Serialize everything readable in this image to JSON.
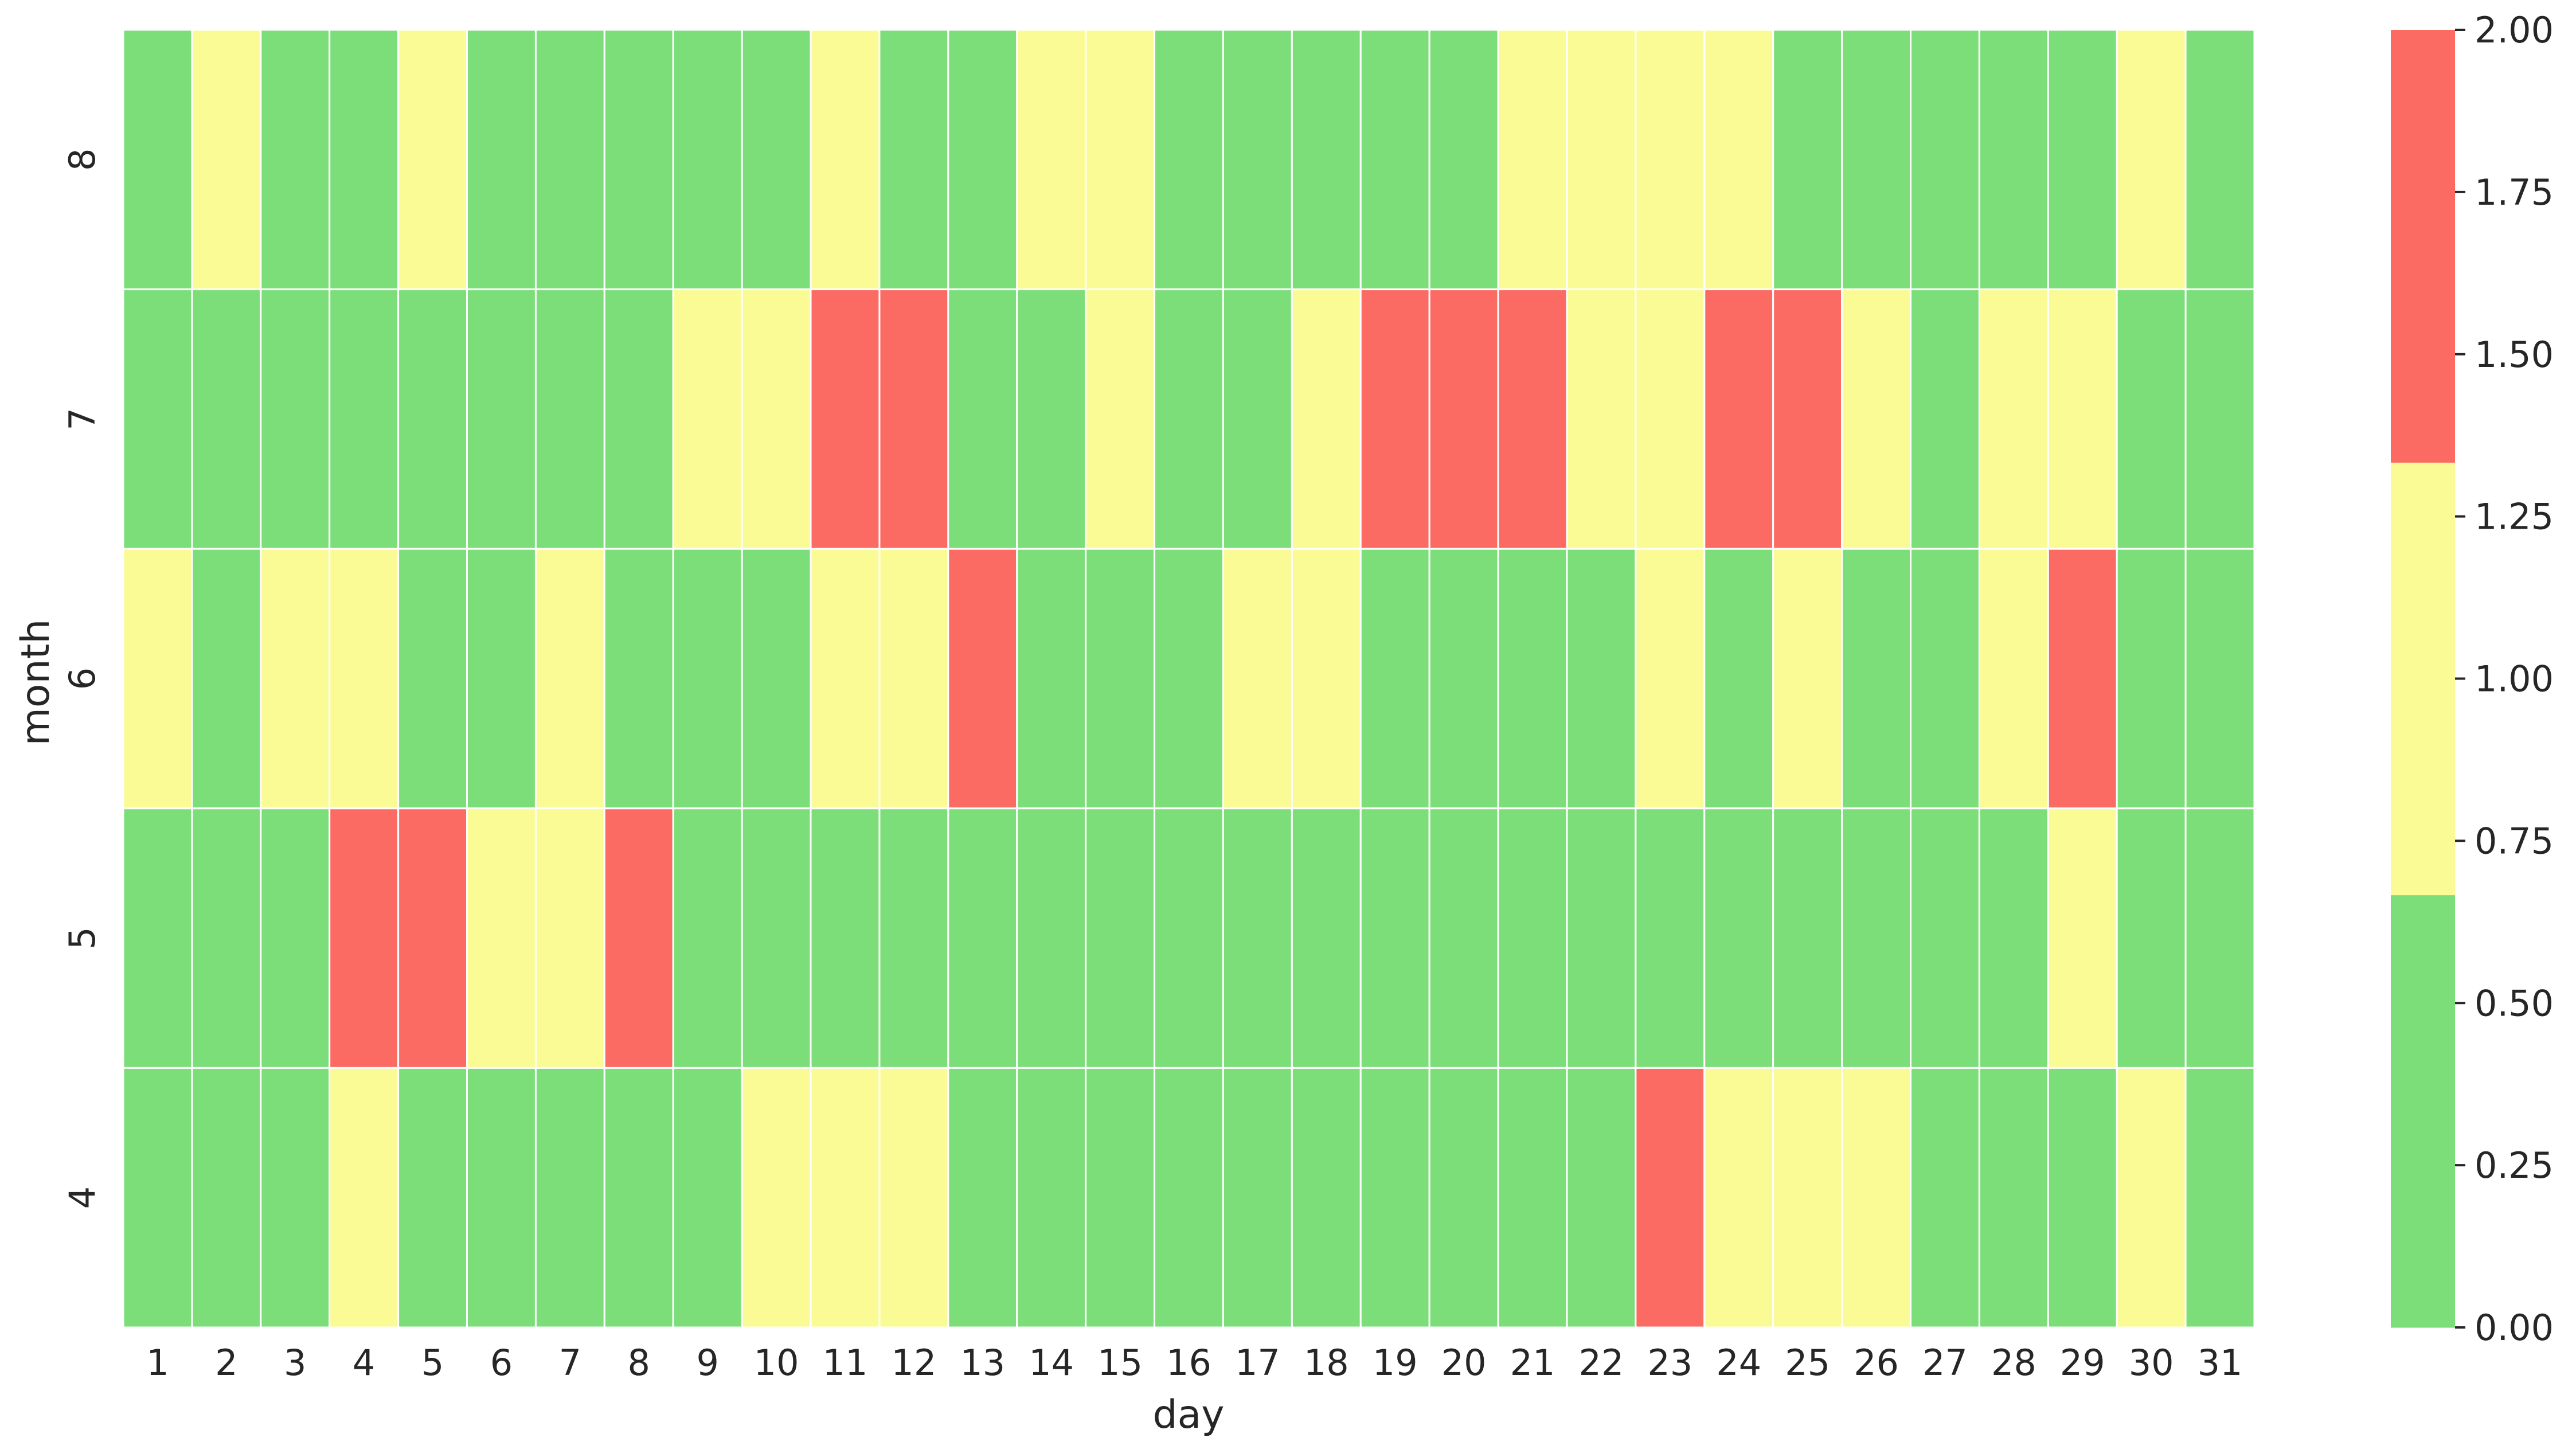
{
  "chart_data": {
    "type": "heatmap",
    "xlabel": "day",
    "ylabel": "month",
    "x_categories": [
      "1",
      "2",
      "3",
      "4",
      "5",
      "6",
      "7",
      "8",
      "9",
      "10",
      "11",
      "12",
      "13",
      "14",
      "15",
      "16",
      "17",
      "18",
      "19",
      "20",
      "21",
      "22",
      "23",
      "24",
      "25",
      "26",
      "27",
      "28",
      "29",
      "30",
      "31"
    ],
    "y_categories": [
      "8",
      "7",
      "6",
      "5",
      "4"
    ],
    "values": [
      [
        0,
        1,
        0,
        0,
        1,
        0,
        0,
        0,
        0,
        0,
        1,
        0,
        0,
        1,
        1,
        0,
        0,
        0,
        0,
        0,
        1,
        1,
        1,
        1,
        0,
        0,
        0,
        0,
        0,
        1,
        0
      ],
      [
        0,
        0,
        0,
        0,
        0,
        0,
        0,
        0,
        1,
        1,
        2,
        2,
        0,
        0,
        1,
        0,
        0,
        1,
        2,
        2,
        2,
        1,
        1,
        2,
        2,
        1,
        0,
        1,
        1,
        0,
        0
      ],
      [
        1,
        0,
        1,
        1,
        0,
        0,
        1,
        0,
        0,
        0,
        1,
        1,
        2,
        0,
        0,
        0,
        1,
        1,
        0,
        0,
        0,
        0,
        1,
        0,
        1,
        0,
        0,
        1,
        2,
        0,
        0
      ],
      [
        0,
        0,
        0,
        2,
        2,
        1,
        1,
        2,
        0,
        0,
        0,
        0,
        0,
        0,
        0,
        0,
        0,
        0,
        0,
        0,
        0,
        0,
        0,
        0,
        0,
        0,
        0,
        0,
        1,
        0,
        0
      ],
      [
        0,
        0,
        0,
        1,
        0,
        0,
        0,
        0,
        0,
        1,
        1,
        1,
        0,
        0,
        0,
        0,
        0,
        0,
        0,
        0,
        0,
        0,
        2,
        1,
        1,
        1,
        0,
        0,
        0,
        1,
        0
      ]
    ],
    "colormap": [
      "#7bde79",
      "#fbfb95",
      "#fc6a64"
    ],
    "colorbar": {
      "range": [
        0,
        2
      ],
      "ticks": [
        "0.00",
        "0.25",
        "0.50",
        "0.75",
        "1.00",
        "1.25",
        "1.50",
        "1.75",
        "2.00"
      ]
    }
  }
}
